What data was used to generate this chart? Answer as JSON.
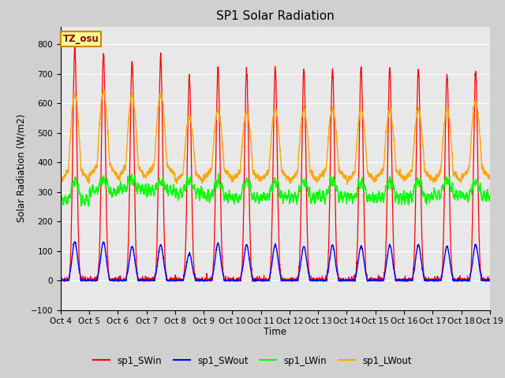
{
  "title": "SP1 Solar Radiation",
  "ylabel": "Solar Radiation (W/m2)",
  "xlabel": "Time",
  "ylim": [
    -100,
    860
  ],
  "yticks": [
    -100,
    0,
    100,
    200,
    300,
    400,
    500,
    600,
    700,
    800
  ],
  "line_colors": {
    "SWin": "#ff0000",
    "SWout": "#0000ff",
    "LWin": "#00ff00",
    "LWout": "#ffa500"
  },
  "legend_labels": [
    "sp1_SWin",
    "sp1_SWout",
    "sp1_LWin",
    "sp1_LWout"
  ],
  "tz_annotation": "TZ_osu",
  "n_days": 15,
  "x_tick_labels": [
    "Oct 4",
    "Oct 5",
    "Oct 6",
    "Oct 7",
    "Oct 8",
    "Oct 9",
    "Oct 10",
    "Oct 11",
    "Oct 12",
    "Oct 13",
    "Oct 14",
    "Oct 15",
    "Oct 16",
    "Oct 17",
    "Oct 18",
    "Oct 19"
  ]
}
